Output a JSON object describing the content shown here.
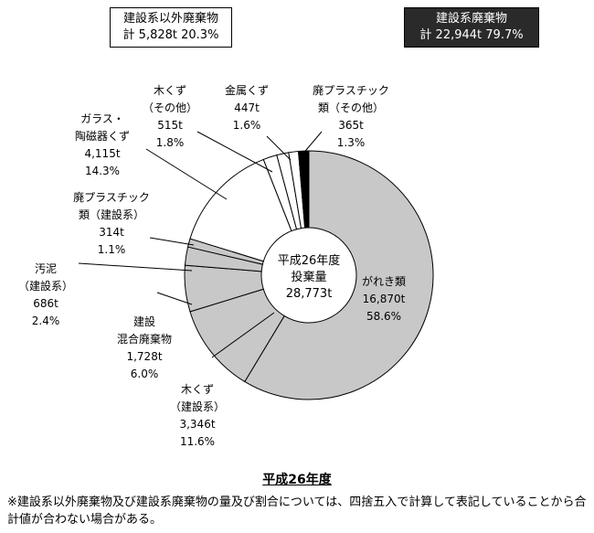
{
  "legend_boxes": {
    "other": {
      "title": "建設系以外廃棄物",
      "total": "計 5,828t 20.3%"
    },
    "construction": {
      "title": "建設系廃棄物",
      "total": "計 22,944t 79.7%"
    }
  },
  "colors": {
    "construction": "#c8c8c8",
    "other": "#ffffff",
    "dark_box": "#2a2a2a",
    "line": "#000000"
  },
  "chart_data": {
    "type": "pie",
    "variant": "donut",
    "center_label": [
      "平成26年度",
      "投棄量",
      "28,773t"
    ],
    "total": 28773,
    "unit": "t",
    "slices": [
      {
        "label": [
          "がれき類"
        ],
        "value": 16870,
        "value_text": "16,870t",
        "percent": 58.6,
        "percent_text": "58.6%",
        "group": "construction"
      },
      {
        "label": [
          "木くず",
          "（建設系）"
        ],
        "value": 3346,
        "value_text": "3,346t",
        "percent": 11.6,
        "percent_text": "11.6%",
        "group": "construction"
      },
      {
        "label": [
          "建設",
          "混合廃棄物"
        ],
        "value": 1728,
        "value_text": "1,728t",
        "percent": 6.0,
        "percent_text": "6.0%",
        "group": "construction"
      },
      {
        "label": [
          "汚泥",
          "（建設系）"
        ],
        "value": 686,
        "value_text": "686t",
        "percent": 2.4,
        "percent_text": "2.4%",
        "group": "construction"
      },
      {
        "label": [
          "廃プラスチック",
          "類（建設系）"
        ],
        "value": 314,
        "value_text": "314t",
        "percent": 1.1,
        "percent_text": "1.1%",
        "group": "construction"
      },
      {
        "label": [
          "ガラス・",
          "陶磁器くず"
        ],
        "value": 4115,
        "value_text": "4,115t",
        "percent": 14.3,
        "percent_text": "14.3%",
        "group": "other"
      },
      {
        "label": [
          "木くず",
          "（その他）"
        ],
        "value": 515,
        "value_text": "515t",
        "percent": 1.8,
        "percent_text": "1.8%",
        "group": "other"
      },
      {
        "label": [
          "金属くず"
        ],
        "value": 447,
        "value_text": "447t",
        "percent": 1.6,
        "percent_text": "1.6%",
        "group": "other"
      },
      {
        "label": [
          "廃プラスチック",
          "類（その他）"
        ],
        "value": 365,
        "value_text": "365t",
        "percent": 1.3,
        "percent_text": "1.3%",
        "group": "other"
      },
      {
        "label": [],
        "value": 386,
        "value_text": "",
        "percent": 1.3,
        "percent_text": "",
        "group": "other",
        "color": "#000000"
      }
    ]
  },
  "subtitle": "平成26年度",
  "footnote": "※建設系以外廃棄物及び建設系廃棄物の量及び割合については、四捨五入で計算して表記していることから合計値が合わない場合がある。"
}
